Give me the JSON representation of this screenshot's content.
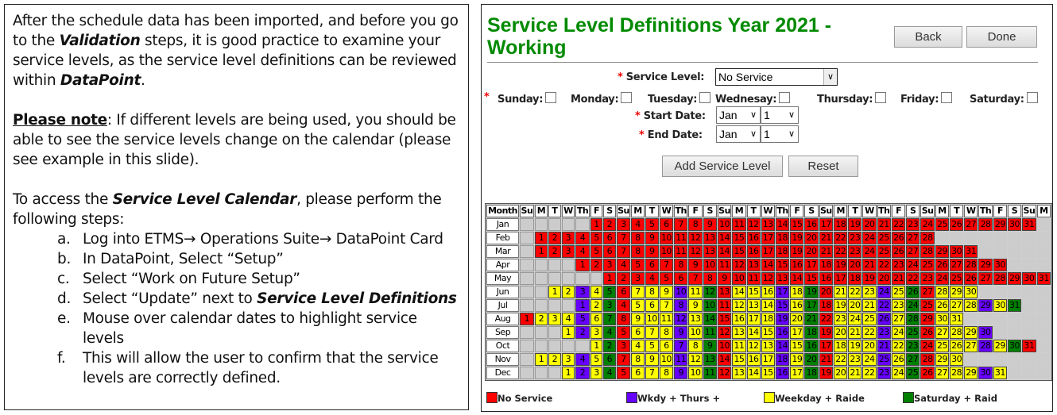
{
  "instructions": {
    "p1": [
      "After the schedule data has been imported, and before you go to the ",
      "Validation",
      " steps, it is good practice to examine your service levels, as the service level definitions can be reviewed within ",
      "DataPoint",
      "."
    ],
    "p2": [
      "Please note",
      ": If different levels are being used, you should be able to see the service levels change on the calendar (please see example in this slide)."
    ],
    "p3": [
      "To access the ",
      "Service Level Calendar",
      ", please perform the following steps:"
    ],
    "steps": [
      {
        "marker": "a.",
        "text": "Log into ETMS→ Operations Suite→ DataPoint Card",
        "bold": ""
      },
      {
        "marker": "b.",
        "text": "In DataPoint, Select “Setup”",
        "bold": ""
      },
      {
        "marker": "c.",
        "text": "Select “Work on Future Setup”",
        "bold": ""
      },
      {
        "marker": "d.",
        "text": "Select “Update” next to ",
        "bold": "Service Level Definitions"
      },
      {
        "marker": "e.",
        "text": "Mouse over calendar dates to highlight service levels",
        "bold": ""
      },
      {
        "marker": "f.",
        "text": "This will allow the user to confirm that the service levels are correctly defined.",
        "bold": ""
      }
    ]
  },
  "app": {
    "title": "Service Level Definitions Year 2021 - Working",
    "back_label": "Back",
    "done_label": "Done",
    "required_mark": "*",
    "service_level_label": "Service Level:",
    "service_level_value": "No Service",
    "days": [
      "Sunday:",
      "Monday:",
      "Tuesday:",
      "Wednesay:",
      "Thursday:",
      "Friday:",
      "Saturday:"
    ],
    "start_date_label": "Start Date:",
    "start_month": "Jan",
    "start_day": "1",
    "end_date_label": "End Date:",
    "end_month": "Jan",
    "end_day": "1",
    "add_label": "Add Service Level",
    "reset_label": "Reset"
  },
  "calendar": {
    "month_header": "Month",
    "weekday_headers": [
      "Su",
      "M",
      "T",
      "W",
      "Th",
      "F",
      "S",
      "Su",
      "M",
      "T",
      "W",
      "Th",
      "F",
      "S",
      "Su",
      "M",
      "T",
      "W",
      "Th",
      "F",
      "S",
      "Su",
      "M",
      "T",
      "W",
      "Th",
      "F",
      "S",
      "Su",
      "M",
      "T",
      "W",
      "Th",
      "F",
      "S",
      "Su",
      "M"
    ],
    "months": [
      {
        "name": "Jan",
        "start_weekday": 5,
        "levels": "NNNNNNNNNNNNNNNNNNNNNNNNNNNNNNN"
      },
      {
        "name": "Feb",
        "start_weekday": 1,
        "levels": "NNNNNNNNNNNNNNNNNNNNNNNNNNNN"
      },
      {
        "name": "Mar",
        "start_weekday": 1,
        "levels": "NNNNNNNNNNNNNNNNNNNNNNNNNNNNNNN"
      },
      {
        "name": "Apr",
        "start_weekday": 4,
        "levels": "NNNNNNNNNNNNNNNNNNNNNNNNNNNNNN"
      },
      {
        "name": "May",
        "start_weekday": 6,
        "levels": "NNNNNNNNNNNNNNNNNNNNNNNNNNNNNNN"
      },
      {
        "name": "Jun",
        "start_weekday": 2,
        "levels": "YYPYGNYYYPYGNYYYPYGNYYYPYGNYYY"
      },
      {
        "name": "Jul",
        "start_weekday": 4,
        "levels": "PYGNYYYPYGNYYYPYGNYYYPYGNYYYPYG"
      },
      {
        "name": "Aug",
        "start_weekday": 0,
        "levels": "NYYYPYGNYYYPYGNYYYPYGNYYYPYGNYY"
      },
      {
        "name": "Sep",
        "start_weekday": 3,
        "levels": "YPYGNYYYPYGNYYYPYGNYYYPYGNYYYP"
      },
      {
        "name": "Oct",
        "start_weekday": 5,
        "levels": "YGNYYYPYGNYYYPYGNYYYPYGNYYYPYGN"
      },
      {
        "name": "Nov",
        "start_weekday": 1,
        "levels": "YYYPYGNYYYPYGNYYYPYGNYYYPYGNYY"
      },
      {
        "name": "Dec",
        "start_weekday": 3,
        "levels": "YPYGNYYYPYGNYYYPYGNYYYPYGNYYYPY"
      }
    ]
  },
  "legend": [
    {
      "code": "N",
      "label": "No Service",
      "color": "#ff0000"
    },
    {
      "code": "P",
      "label": "Wkdy + Thurs +",
      "color": "#6600ff"
    },
    {
      "code": "Y",
      "label": "Weekday + Raide",
      "color": "#ffff00"
    },
    {
      "code": "G",
      "label": "Saturday + Raid",
      "color": "#008000"
    }
  ]
}
